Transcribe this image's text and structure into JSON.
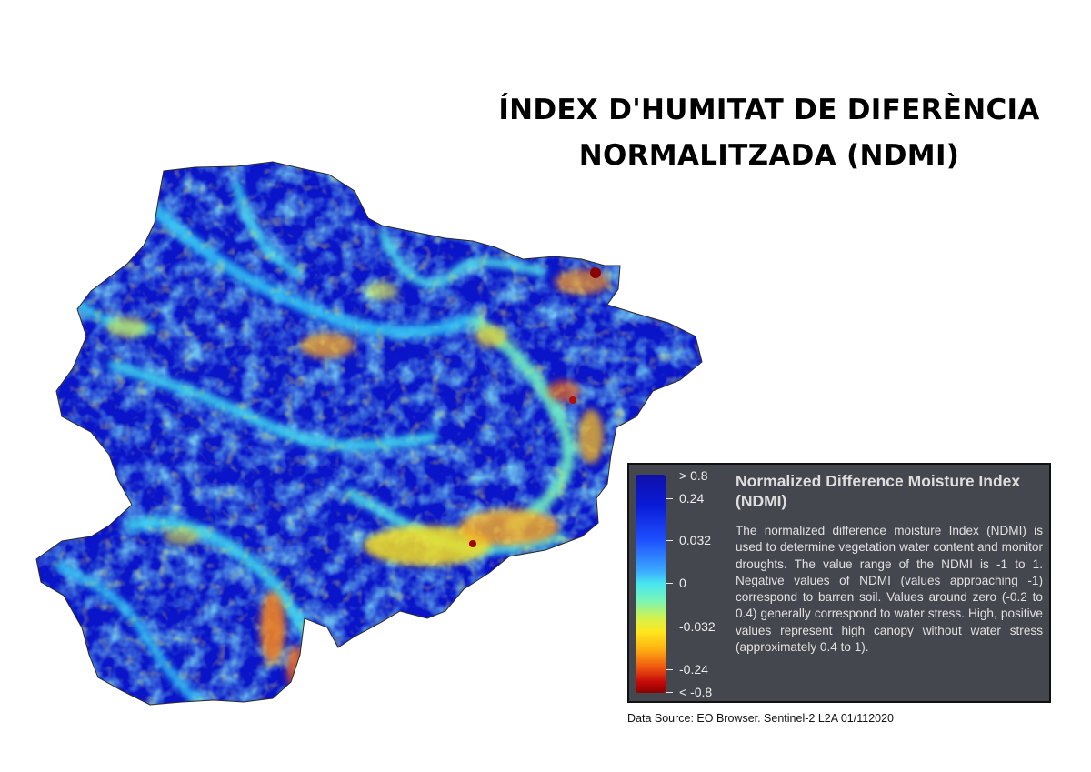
{
  "title": {
    "line1": "ÍNDEX D'HUMITAT DE DIFERÈNCIA",
    "line2": "NORMALITZADA (NDMI)"
  },
  "legend": {
    "title": "Normalized Difference Moisture Index (NDMI)",
    "description": "The normalized difference moisture Index (NDMI) is used to determine vegetation water content and monitor droughts. The value range of the NDMI is -1 to 1. Negative values of NDMI (values approaching -1) correspond to barren soil. Values around zero (-0.2 to 0.4) generally correspond to water stress. High, positive values represent high canopy without water stress (approximately 0.4 to 1).",
    "ticks": [
      "> 0.8",
      "0.24",
      "0.032",
      "0",
      "-0.032",
      "-0.24",
      "< -0.8"
    ],
    "colors": [
      "#1010a8",
      "#0a1bd8",
      "#1e50ff",
      "#3aa8ff",
      "#48e6f0",
      "#d6f24a",
      "#ffe61e",
      "#ffb012",
      "#f05a10",
      "#c40a0a",
      "#8b0000"
    ]
  },
  "source": "Data Source: EO Browser. Sentinel-2 L2A 01/112020"
}
